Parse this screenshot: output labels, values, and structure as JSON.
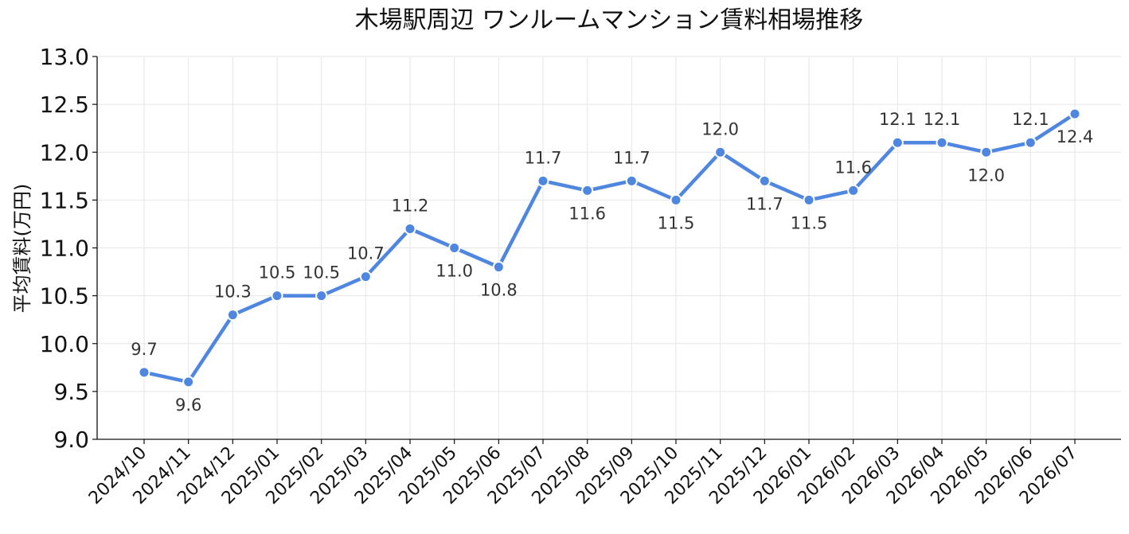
{
  "chart_data": {
    "type": "line",
    "title": "木場駅周辺 ワンルームマンション賃料相場推移",
    "xlabel": "",
    "ylabel": "平均賃料(万円)",
    "ylim": [
      9.0,
      13.0
    ],
    "yticks": [
      "9.0",
      "9.5",
      "10.0",
      "10.5",
      "11.0",
      "11.5",
      "12.0",
      "12.5",
      "13.0"
    ],
    "grid": true,
    "categories": [
      "2024/10",
      "2024/11",
      "2024/12",
      "2025/01",
      "2025/02",
      "2025/03",
      "2025/04",
      "2025/05",
      "2025/06",
      "2025/07",
      "2025/08",
      "2025/09",
      "2025/10",
      "2025/11",
      "2025/12",
      "2026/01",
      "2026/02",
      "2026/03",
      "2026/04",
      "2026/05",
      "2026/06",
      "2026/07"
    ],
    "series": [
      {
        "values": [
          9.7,
          9.6,
          10.3,
          10.5,
          10.5,
          10.7,
          11.2,
          11.0,
          10.8,
          11.7,
          11.6,
          11.7,
          11.5,
          12.0,
          11.7,
          11.5,
          11.6,
          12.1,
          12.1,
          12.0,
          12.1,
          12.4
        ],
        "labels": [
          "9.7",
          "9.6",
          "10.3",
          "10.5",
          "10.5",
          "10.7",
          "11.2",
          "11.0",
          "10.8",
          "11.7",
          "11.6",
          "11.7",
          "11.5",
          "12.0",
          "11.7",
          "11.5",
          "11.6",
          "12.1",
          "12.1",
          "12.0",
          "12.1",
          "12.4"
        ],
        "color": "#4f86e0"
      }
    ]
  }
}
